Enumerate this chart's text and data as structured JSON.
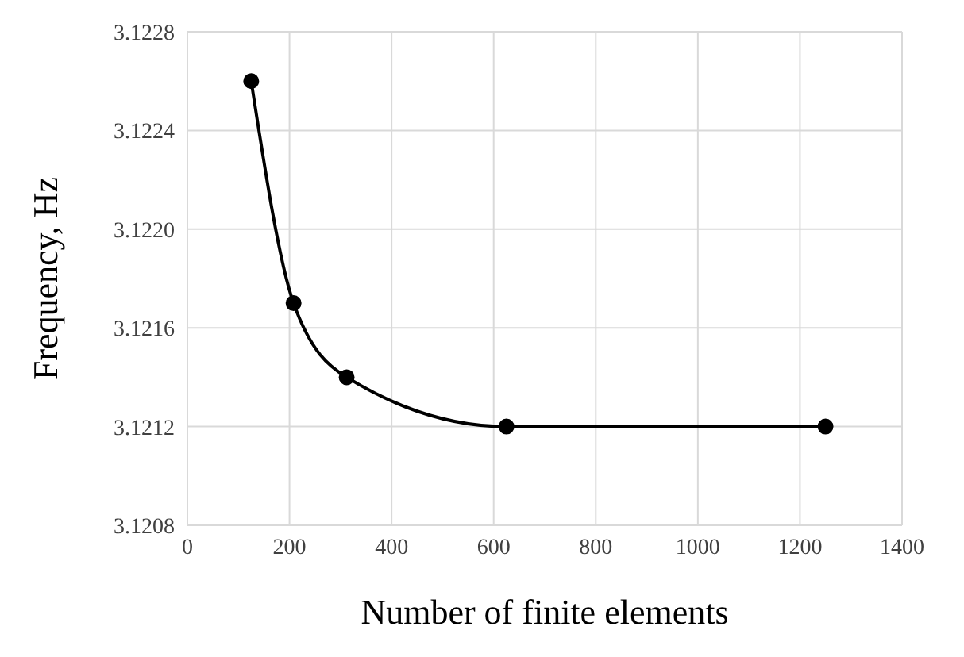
{
  "chart_data": {
    "type": "line",
    "xlabel": "Number of finite elements",
    "ylabel": "Frequency, Hz",
    "x": [
      125,
      208,
      312,
      625,
      1250
    ],
    "series": [
      {
        "color": "#000000",
        "values": [
          3.1226,
          3.1217,
          3.1214,
          3.1212,
          3.1212
        ]
      }
    ],
    "xlim": [
      0,
      1400
    ],
    "xticks": [
      0,
      200,
      400,
      600,
      800,
      1000,
      1200,
      1400
    ],
    "ylim": [
      3.1208,
      3.1228
    ],
    "yticks": [
      {
        "value": 3.1208,
        "label": "3.1208"
      },
      {
        "value": 3.1212,
        "label": "3.1212"
      },
      {
        "value": 3.1216,
        "label": "3.1216"
      },
      {
        "value": 3.122,
        "label": "3.1220"
      },
      {
        "value": 3.1224,
        "label": "3.1224"
      },
      {
        "value": 3.1228,
        "label": "3.1228"
      }
    ],
    "grid": true,
    "marker": "circle",
    "line_style": "solid",
    "legend": false
  }
}
